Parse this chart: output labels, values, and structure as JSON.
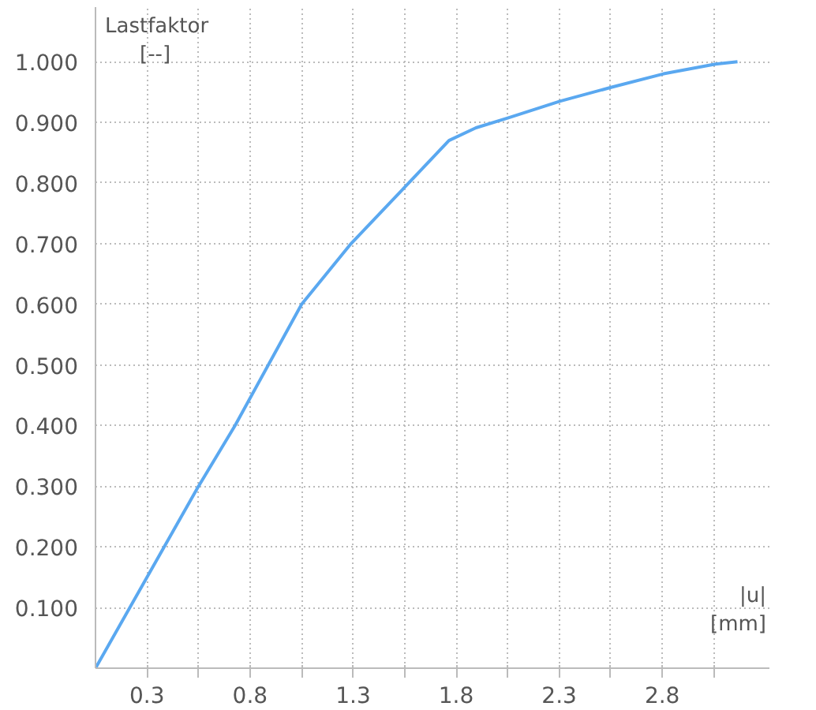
{
  "chart_data": {
    "type": "line",
    "xlabel": "|u|\n[mm]",
    "ylabel": "Lastfaktor\n[--]",
    "x": [
      0.05,
      0.55,
      0.727,
      1.05,
      1.29,
      1.57,
      1.765,
      1.896,
      2.05,
      2.306,
      2.555,
      2.806,
      3.058,
      3.165
    ],
    "series": [
      {
        "color": "#5aa8f0",
        "values": [
          0,
          0.3,
          0.4,
          0.6,
          0.7,
          0.8,
          0.87,
          0.891,
          0.907,
          0.935,
          0.958,
          0.98,
          0.996,
          1.0
        ]
      }
    ],
    "xlim": [
      0.05,
      3.32
    ],
    "ylim": [
      0,
      1.09
    ],
    "xticks": [
      0.3,
      {
        "value": 0.55,
        "label": null
      },
      0.8,
      {
        "value": 1.05,
        "label": null
      },
      1.3,
      {
        "value": 1.55,
        "label": null
      },
      1.8,
      {
        "value": 2.05,
        "label": null
      },
      2.3,
      {
        "value": 2.55,
        "label": null
      },
      2.8,
      {
        "value": 3.05,
        "label": null
      }
    ],
    "yticks": [
      {
        "value": 0.1,
        "label": "0.100"
      },
      {
        "value": 0.2,
        "label": "0.200"
      },
      {
        "value": 0.3,
        "label": "0.300"
      },
      {
        "value": 0.4,
        "label": "0.400"
      },
      {
        "value": 0.5,
        "label": "0.500"
      },
      {
        "value": 0.6,
        "label": "0.600"
      },
      {
        "value": 0.7,
        "label": "0.700"
      },
      {
        "value": 0.8,
        "label": "0.800"
      },
      {
        "value": 0.9,
        "label": "0.900"
      },
      {
        "value": 1.0,
        "label": "1.000"
      }
    ],
    "grid": true,
    "line_style": "solid"
  }
}
